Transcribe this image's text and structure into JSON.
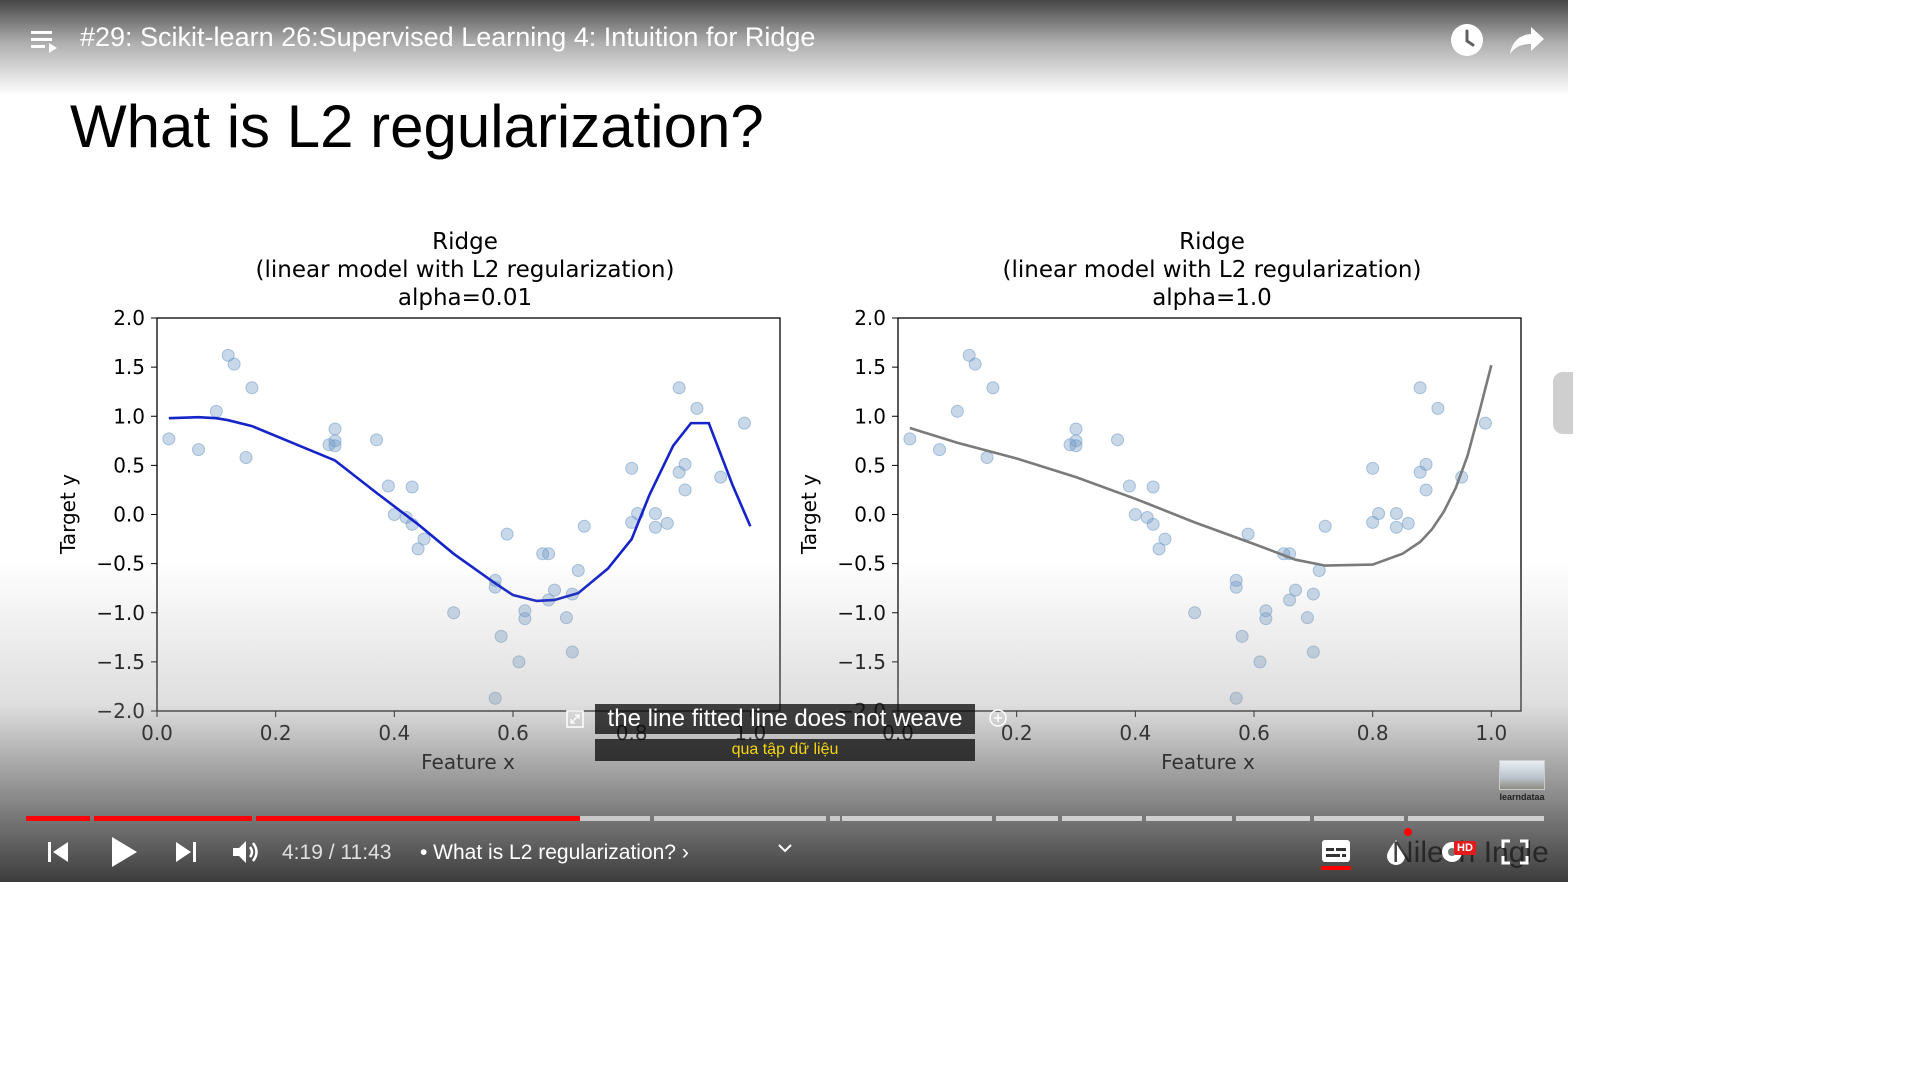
{
  "player": {
    "video_title": "#29: Scikit-learn 26:Supervised Learning 4: Intuition for Ridge",
    "time_current": "4:19",
    "time_separator": "/",
    "time_total": "11:43",
    "chapter_label": "• What is L2 regularization? ›",
    "progress_fraction": 0.3634,
    "caption_line_1": "the line fitted line does not weave",
    "caption_line_2": "qua tập dữ liệu",
    "watermark_text": "Nilesh Ingle",
    "hd_badge": "HD",
    "channel_name": "learndataa",
    "colors": {
      "progress_played": "#ff0000",
      "caption_translation": "#f5d70b"
    },
    "icons": [
      "playlist-icon",
      "watch-later-icon",
      "share-icon",
      "previous-icon",
      "play-icon",
      "next-icon",
      "volume-icon",
      "chevron-down-icon",
      "subtitles-icon",
      "settings-icon",
      "fullscreen-icon",
      "expand-caption-icon",
      "add-caption-icon"
    ]
  },
  "slide": {
    "heading": "What is L2 regularization?"
  },
  "chart_data": [
    {
      "type": "scatter",
      "title_lines": [
        "Ridge",
        "(linear model with L2 regularization)",
        "alpha=0.01"
      ],
      "xlabel": "Feature x",
      "ylabel": "Target y",
      "xlim": [
        0.0,
        1.05
      ],
      "ylim": [
        -2.0,
        2.0
      ],
      "xticks": [
        "0.0",
        "0.2",
        "0.4",
        "0.6",
        "0.8",
        "1.0"
      ],
      "yticks": [
        "−2.0",
        "−1.5",
        "−1.0",
        "−0.5",
        "0.0",
        "0.5",
        "1.0",
        "1.5",
        "2.0"
      ],
      "xtick_values": [
        0.0,
        0.2,
        0.4,
        0.6,
        0.8,
        1.0
      ],
      "ytick_values": [
        -2.0,
        -1.5,
        -1.0,
        -0.5,
        0.0,
        0.5,
        1.0,
        1.5,
        2.0
      ],
      "points": [
        [
          0.02,
          0.77
        ],
        [
          0.07,
          0.66
        ],
        [
          0.1,
          1.05
        ],
        [
          0.12,
          1.62
        ],
        [
          0.13,
          1.53
        ],
        [
          0.15,
          0.58
        ],
        [
          0.16,
          1.29
        ],
        [
          0.29,
          0.71
        ],
        [
          0.3,
          0.87
        ],
        [
          0.3,
          0.7
        ],
        [
          0.3,
          0.75
        ],
        [
          0.37,
          0.76
        ],
        [
          0.39,
          0.29
        ],
        [
          0.4,
          0.0
        ],
        [
          0.42,
          -0.03
        ],
        [
          0.43,
          -0.1
        ],
        [
          0.43,
          0.28
        ],
        [
          0.44,
          -0.35
        ],
        [
          0.45,
          -0.25
        ],
        [
          0.5,
          -1.0
        ],
        [
          0.57,
          -1.87
        ],
        [
          0.57,
          -0.74
        ],
        [
          0.57,
          -0.67
        ],
        [
          0.58,
          -1.24
        ],
        [
          0.59,
          -0.2
        ],
        [
          0.61,
          -1.5
        ],
        [
          0.62,
          -0.98
        ],
        [
          0.62,
          -1.06
        ],
        [
          0.65,
          -0.4
        ],
        [
          0.66,
          -0.4
        ],
        [
          0.66,
          -0.87
        ],
        [
          0.67,
          -0.77
        ],
        [
          0.69,
          -1.05
        ],
        [
          0.7,
          -1.4
        ],
        [
          0.7,
          -0.81
        ],
        [
          0.71,
          -0.57
        ],
        [
          0.72,
          -0.12
        ],
        [
          0.8,
          0.47
        ],
        [
          0.8,
          -0.08
        ],
        [
          0.81,
          0.01
        ],
        [
          0.84,
          -0.13
        ],
        [
          0.84,
          0.01
        ],
        [
          0.86,
          -0.09
        ],
        [
          0.88,
          1.29
        ],
        [
          0.88,
          0.43
        ],
        [
          0.89,
          0.51
        ],
        [
          0.89,
          0.25
        ],
        [
          0.91,
          1.08
        ],
        [
          0.95,
          0.38
        ],
        [
          0.99,
          0.93
        ]
      ],
      "series": [
        {
          "x": [
            0.02,
            0.07,
            0.1,
            0.12,
            0.16,
            0.3,
            0.37,
            0.44,
            0.5,
            0.57,
            0.6,
            0.64,
            0.67,
            0.71,
            0.76,
            0.8,
            0.83,
            0.87,
            0.9,
            0.93,
            0.97,
            1.0
          ],
          "y": [
            0.98,
            0.99,
            0.98,
            0.96,
            0.9,
            0.55,
            0.22,
            -0.1,
            -0.4,
            -0.7,
            -0.82,
            -0.88,
            -0.87,
            -0.8,
            -0.55,
            -0.25,
            0.2,
            0.7,
            0.93,
            0.93,
            0.3,
            -0.12
          ]
        }
      ],
      "colors": {
        "line": "#1524c8",
        "points": "#6f99c4"
      },
      "grid": false
    },
    {
      "type": "scatter",
      "title_lines": [
        "Ridge",
        "(linear model with L2 regularization)",
        "alpha=1.0"
      ],
      "xlabel": "Feature x",
      "ylabel": "Target y",
      "xlim": [
        0.0,
        1.05
      ],
      "ylim": [
        -2.0,
        2.0
      ],
      "xticks": [
        "0.0",
        "0.2",
        "0.4",
        "0.6",
        "0.8",
        "1.0"
      ],
      "yticks": [
        "−2.0",
        "−1.5",
        "−1.0",
        "−0.5",
        "0.0",
        "0.5",
        "1.0",
        "1.5",
        "2.0"
      ],
      "xtick_values": [
        0.0,
        0.2,
        0.4,
        0.6,
        0.8,
        1.0
      ],
      "ytick_values": [
        -2.0,
        -1.5,
        -1.0,
        -0.5,
        0.0,
        0.5,
        1.0,
        1.5,
        2.0
      ],
      "points": [
        [
          0.02,
          0.77
        ],
        [
          0.07,
          0.66
        ],
        [
          0.1,
          1.05
        ],
        [
          0.12,
          1.62
        ],
        [
          0.13,
          1.53
        ],
        [
          0.15,
          0.58
        ],
        [
          0.16,
          1.29
        ],
        [
          0.29,
          0.71
        ],
        [
          0.3,
          0.87
        ],
        [
          0.3,
          0.7
        ],
        [
          0.3,
          0.75
        ],
        [
          0.37,
          0.76
        ],
        [
          0.39,
          0.29
        ],
        [
          0.4,
          0.0
        ],
        [
          0.42,
          -0.03
        ],
        [
          0.43,
          -0.1
        ],
        [
          0.43,
          0.28
        ],
        [
          0.44,
          -0.35
        ],
        [
          0.45,
          -0.25
        ],
        [
          0.5,
          -1.0
        ],
        [
          0.57,
          -1.87
        ],
        [
          0.57,
          -0.74
        ],
        [
          0.57,
          -0.67
        ],
        [
          0.58,
          -1.24
        ],
        [
          0.59,
          -0.2
        ],
        [
          0.61,
          -1.5
        ],
        [
          0.62,
          -0.98
        ],
        [
          0.62,
          -1.06
        ],
        [
          0.65,
          -0.4
        ],
        [
          0.66,
          -0.4
        ],
        [
          0.66,
          -0.87
        ],
        [
          0.67,
          -0.77
        ],
        [
          0.69,
          -1.05
        ],
        [
          0.7,
          -1.4
        ],
        [
          0.7,
          -0.81
        ],
        [
          0.71,
          -0.57
        ],
        [
          0.72,
          -0.12
        ],
        [
          0.8,
          0.47
        ],
        [
          0.8,
          -0.08
        ],
        [
          0.81,
          0.01
        ],
        [
          0.84,
          -0.13
        ],
        [
          0.84,
          0.01
        ],
        [
          0.86,
          -0.09
        ],
        [
          0.88,
          1.29
        ],
        [
          0.88,
          0.43
        ],
        [
          0.89,
          0.51
        ],
        [
          0.89,
          0.25
        ],
        [
          0.91,
          1.08
        ],
        [
          0.95,
          0.38
        ],
        [
          0.99,
          0.93
        ]
      ],
      "series": [
        {
          "x": [
            0.02,
            0.1,
            0.2,
            0.3,
            0.4,
            0.5,
            0.6,
            0.67,
            0.72,
            0.8,
            0.85,
            0.88,
            0.9,
            0.92,
            0.94,
            0.96,
            0.98,
            1.0
          ],
          "y": [
            0.88,
            0.73,
            0.57,
            0.38,
            0.16,
            -0.08,
            -0.3,
            -0.46,
            -0.52,
            -0.51,
            -0.4,
            -0.28,
            -0.15,
            0.03,
            0.27,
            0.6,
            1.05,
            1.52
          ]
        }
      ],
      "colors": {
        "line": "#7a7a7a",
        "points": "#6f99c4"
      },
      "grid": false
    }
  ]
}
